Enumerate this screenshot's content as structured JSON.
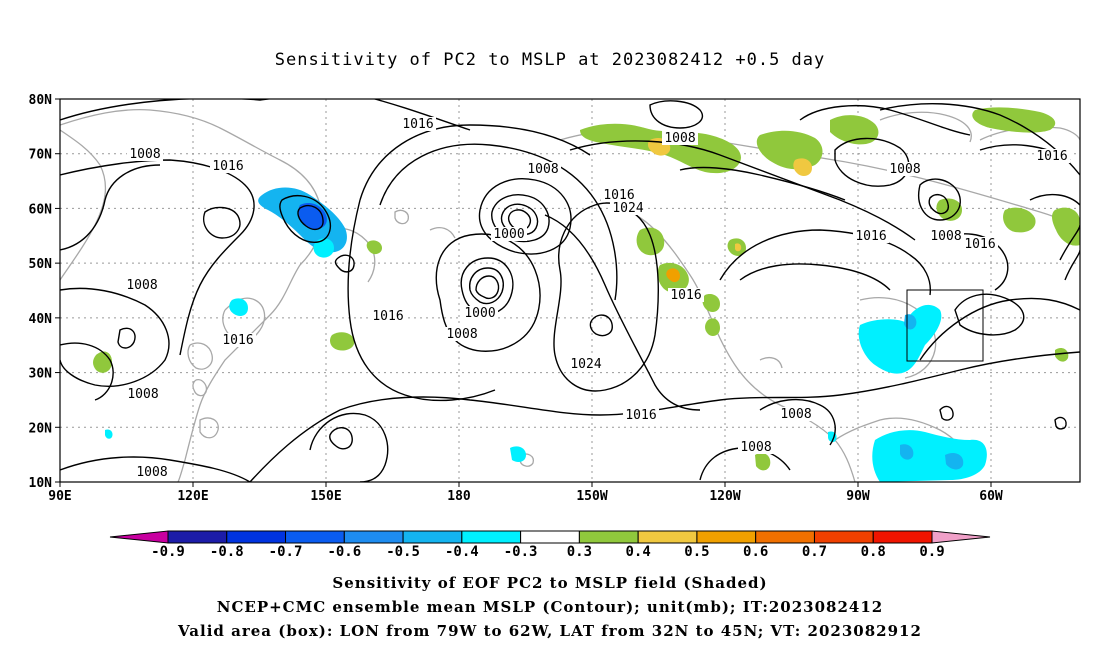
{
  "title": "Sensitivity of PC2 to MSLP at 2023082412 +0.5 day",
  "map": {
    "lat_labels": [
      "80N",
      "70N",
      "60N",
      "50N",
      "40N",
      "30N",
      "20N",
      "10N"
    ],
    "lon_labels": [
      "90E",
      "120E",
      "150E",
      "180",
      "150W",
      "120W",
      "90W",
      "60W"
    ],
    "lon_range": [
      "90E",
      "40W"
    ],
    "lat_range": [
      "10N",
      "80N"
    ],
    "grid": "dotted",
    "contour_color": "#000000",
    "coastline_color": "#a0a0a0",
    "valid_box": {
      "lon": [
        "79W",
        "62W"
      ],
      "lat": [
        "32N",
        "45N"
      ]
    },
    "contour_labels": [
      "1016",
      "1008",
      "1016",
      "1008",
      "1016",
      "1016",
      "1008",
      "1008",
      "1008",
      "1008",
      "1000",
      "1000",
      "1008",
      "1016",
      "1024",
      "1024",
      "1016",
      "1016",
      "1008",
      "1000",
      "1016",
      "1008",
      "1016",
      "1016",
      "1016",
      "1008",
      "1008"
    ]
  },
  "colorbar": {
    "labels": [
      "-0.9",
      "-0.8",
      "-0.7",
      "-0.6",
      "-0.5",
      "-0.4",
      "-0.3",
      "0.3",
      "0.4",
      "0.5",
      "0.6",
      "0.7",
      "0.8",
      "0.9"
    ],
    "colors": [
      "#1c1ca8",
      "#0033e0",
      "#0a5cf0",
      "#1e8cf0",
      "#14b4f0",
      "#00f0ff",
      "#ffffff",
      "#90c83c",
      "#f0c840",
      "#f0a000",
      "#f07000",
      "#f04000",
      "#f01400"
    ],
    "low_end_color": "#c800a0",
    "high_end_color": "#f0a0c8"
  },
  "captions": {
    "line1": "Sensitivity of EOF PC2 to MSLP field (Shaded)",
    "line2": "NCEP+CMC ensemble mean MSLP (Contour); unit(mb); IT:2023082412",
    "line3": "Valid area (box): LON from 79W to 62W, LAT from 32N to 45N; VT: 2023082912"
  }
}
